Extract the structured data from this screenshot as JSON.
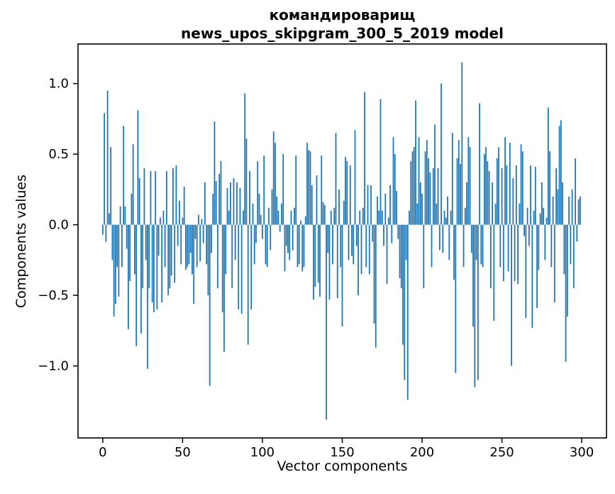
{
  "chart_data": {
    "type": "bar",
    "title_line1": "командироварищ",
    "title_line2": "news_upos_skipgram_300_5_2019 model",
    "xlabel": "Vector components",
    "ylabel": "Components values",
    "x_start": 0,
    "n_bars": 300,
    "bar_width_data": 0.8,
    "bar_color": "#1f77b4",
    "axis_color": "#000000",
    "grid": false,
    "legend_position": "none",
    "xlim": [
      -15.5,
      315.5
    ],
    "ylim": [
      -1.51,
      1.28
    ],
    "xticks": [
      0,
      50,
      100,
      150,
      200,
      250,
      300
    ],
    "xtick_labels": [
      "0",
      "50",
      "100",
      "150",
      "200",
      "250",
      "300"
    ],
    "yticks": [
      1.0,
      0.5,
      0.0,
      -0.5,
      -1.0
    ],
    "ytick_labels": [
      "1.0",
      "0.5",
      "0.0",
      "−0.5",
      "−1.0"
    ],
    "values": [
      -0.07,
      0.79,
      -0.12,
      0.95,
      0.08,
      0.55,
      -0.25,
      -0.65,
      -0.56,
      -0.3,
      -0.51,
      0.13,
      -0.3,
      0.7,
      0.13,
      -0.17,
      -0.74,
      -0.4,
      0.22,
      0.57,
      -0.35,
      -0.86,
      0.81,
      0.33,
      -0.77,
      -0.45,
      0.4,
      -0.25,
      -1.02,
      -0.45,
      0.38,
      -0.55,
      -0.62,
      0.38,
      -0.6,
      -0.22,
      0.05,
      -0.55,
      0.1,
      -0.3,
      0.38,
      -0.5,
      -0.45,
      -0.36,
      0.4,
      -0.41,
      0.42,
      -0.15,
      0.17,
      -0.28,
      0.05,
      0.27,
      -0.32,
      -0.3,
      -0.28,
      -0.2,
      -0.35,
      -0.56,
      -0.1,
      -0.3,
      0.07,
      -0.26,
      0.04,
      -0.13,
      0.3,
      -0.28,
      -0.5,
      -1.14,
      -0.2,
      0.22,
      0.73,
      0.31,
      -0.45,
      0.36,
      0.45,
      -0.62,
      -0.9,
      -0.35,
      0.26,
      0.1,
      0.3,
      -0.45,
      0.33,
      -0.25,
      0.3,
      -0.6,
      0.26,
      -0.63,
      0.1,
      0.93,
      0.61,
      -0.85,
      0.38,
      -0.6,
      0.15,
      -0.28,
      -0.13,
      0.45,
      0.22,
      0.07,
      -0.1,
      0.49,
      -0.28,
      -0.3,
      0.12,
      -0.18,
      0.25,
      0.66,
      0.58,
      0.2,
      0.1,
      -0.05,
      0.15,
      0.5,
      -0.33,
      -0.15,
      -0.2,
      -0.25,
      0.1,
      -0.18,
      0.12,
      0.49,
      -0.3,
      -0.28,
      0.03,
      -0.33,
      -0.3,
      0.06,
      0.58,
      0.53,
      0.52,
      0.28,
      -0.53,
      -0.44,
      0.35,
      -0.41,
      -0.51,
      0.49,
      0.16,
      0.14,
      -1.38,
      -0.2,
      -0.53,
      0.1,
      -0.28,
      0.12,
      0.65,
      -0.52,
      0.25,
      -0.3,
      -0.72,
      0.17,
      0.48,
      0.45,
      -0.25,
      0.42,
      -0.22,
      -0.28,
      0.67,
      -0.15,
      -0.5,
      0.1,
      -0.35,
      0.12,
      0.94,
      -0.3,
      0.28,
      -0.35,
      0.28,
      -0.12,
      -0.7,
      -0.87,
      0.2,
      0.1,
      0.89,
      0.1,
      -0.15,
      0.22,
      -0.42,
      0.05,
      0.28,
      -0.13,
      0.62,
      0.5,
      0.24,
      -0.1,
      -0.38,
      -0.45,
      -0.85,
      -1.1,
      -0.25,
      -1.24,
      0.1,
      0.45,
      0.52,
      0.55,
      0.88,
      0.15,
      0.62,
      0.3,
      0.22,
      -0.45,
      0.52,
      0.6,
      0.47,
      0.37,
      -0.3,
      0.4,
      0.71,
      0.15,
      0.4,
      -0.18,
      1.0,
      -0.2,
      0.1,
      0.05,
      0.2,
      -0.25,
      0.1,
      0.65,
      -0.39,
      -1.05,
      0.47,
      0.6,
      0.43,
      1.15,
      -0.3,
      0.12,
      0.3,
      0.62,
      0.55,
      -0.2,
      -0.72,
      -1.15,
      -0.25,
      -1.1,
      0.86,
      -0.28,
      -0.3,
      0.5,
      0.55,
      0.45,
      0.38,
      -0.45,
      0.3,
      -0.68,
      0.15,
      0.47,
      0.55,
      -0.3,
      0.4,
      -0.4,
      0.62,
      0.42,
      -0.33,
      0.58,
      -1.0,
      0.33,
      -0.4,
      0.42,
      -0.42,
      0.15,
      0.57,
      0.52,
      -0.08,
      -0.66,
      0.12,
      -0.15,
      0.42,
      -0.73,
      0.1,
      0.41,
      -0.59,
      -0.32,
      0.08,
      0.3,
      0.12,
      -0.25,
      0.05,
      0.83,
      0.52,
      -0.3,
      0.2,
      -0.55,
      0.4,
      0.25,
      0.7,
      0.74,
      0.3,
      -0.35,
      -0.97,
      -0.65,
      0.2,
      -0.28,
      0.25,
      -0.45,
      0.47,
      -0.12,
      0.18,
      0.2
    ]
  }
}
